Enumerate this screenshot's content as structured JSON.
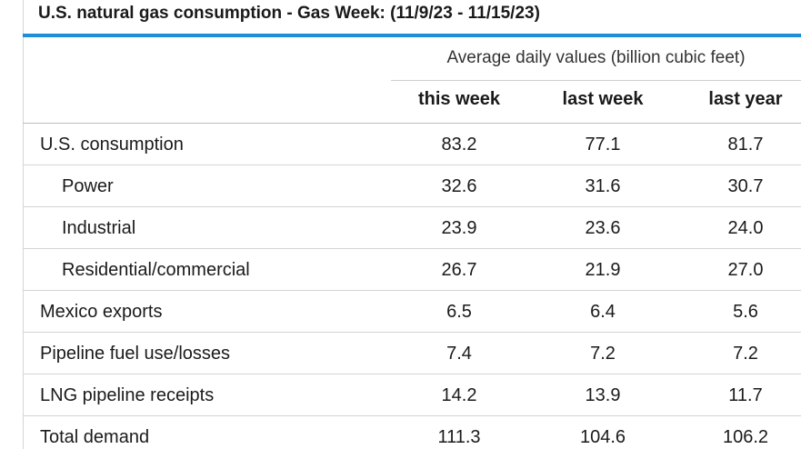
{
  "title": "U.S. natural gas consumption - Gas Week: (11/9/23 - 11/15/23)",
  "group_header": "Average daily values (billion cubic feet)",
  "columns": [
    "this week",
    "last week",
    "last year"
  ],
  "rows": [
    {
      "label": "U.S. consumption",
      "indent": false,
      "values": [
        "83.2",
        "77.1",
        "81.7"
      ]
    },
    {
      "label": "Power",
      "indent": true,
      "values": [
        "32.6",
        "31.6",
        "30.7"
      ]
    },
    {
      "label": "Industrial",
      "indent": true,
      "values": [
        "23.9",
        "23.6",
        "24.0"
      ]
    },
    {
      "label": "Residential/commercial",
      "indent": true,
      "values": [
        "26.7",
        "21.9",
        "27.0"
      ]
    },
    {
      "label": "Mexico exports",
      "indent": false,
      "values": [
        "6.5",
        "6.4",
        "5.6"
      ]
    },
    {
      "label": "Pipeline fuel use/losses",
      "indent": false,
      "values": [
        "7.4",
        "7.2",
        "7.2"
      ]
    },
    {
      "label": "LNG pipeline receipts",
      "indent": false,
      "values": [
        "14.2",
        "13.9",
        "11.7"
      ]
    },
    {
      "label": "Total demand",
      "indent": false,
      "values": [
        "111.3",
        "104.6",
        "106.2"
      ]
    }
  ],
  "colors": {
    "accent_rule": "#1d8fd6"
  }
}
